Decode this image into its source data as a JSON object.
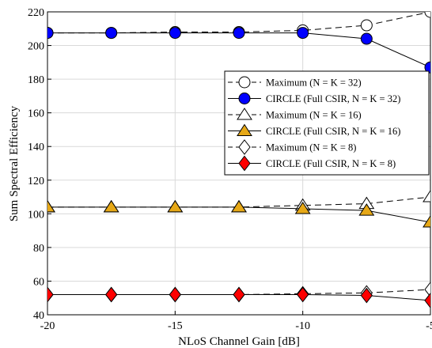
{
  "chart_data": {
    "type": "line",
    "xlabel": "NLoS Channel Gain [dB]",
    "ylabel": "Sum Spectral Efficiency",
    "xlim": [
      -20,
      -5
    ],
    "ylim": [
      40,
      220
    ],
    "x_ticks": [
      -20,
      -15,
      -10,
      -5
    ],
    "x_tick_labels": [
      "-20",
      "-15",
      "-10",
      "-5"
    ],
    "y_ticks": [
      40,
      60,
      80,
      100,
      120,
      140,
      160,
      180,
      200,
      220
    ],
    "y_tick_labels": [
      "40",
      "60",
      "80",
      "100",
      "120",
      "140",
      "160",
      "180",
      "200",
      "220"
    ],
    "grid": true,
    "legend_position": "right",
    "x": [
      -20,
      -17.5,
      -15,
      -12.5,
      -10,
      -7.5,
      -5
    ],
    "series": [
      {
        "name": "Maximum (N = K = 32)",
        "marker": "circle",
        "fill": "#ffffff",
        "dashed": true,
        "values": [
          207.5,
          207.5,
          208,
          208,
          209,
          212,
          220
        ]
      },
      {
        "name": "CIRCLE (Full CSIR, N = K = 32)",
        "marker": "circle",
        "fill": "#0000ff",
        "dashed": false,
        "values": [
          207.5,
          207.5,
          207.5,
          207.5,
          207.5,
          204,
          187
        ]
      },
      {
        "name": "Maximum (N = K = 16)",
        "marker": "triangle",
        "fill": "#ffffff",
        "dashed": true,
        "values": [
          104,
          104,
          104,
          104,
          105,
          106,
          110
        ]
      },
      {
        "name": "CIRCLE (Full CSIR, N = K = 16)",
        "marker": "triangle",
        "fill": "#e6a817",
        "dashed": false,
        "values": [
          104,
          104,
          104,
          104,
          103,
          102,
          95
        ]
      },
      {
        "name": "Maximum (N = K = 8)",
        "marker": "diamond",
        "fill": "#ffffff",
        "dashed": true,
        "values": [
          52,
          52,
          52,
          52,
          52.5,
          53,
          55
        ]
      },
      {
        "name": "CIRCLE (Full CSIR, N = K = 8)",
        "marker": "diamond",
        "fill": "#ff0000",
        "dashed": false,
        "values": [
          52,
          52,
          52,
          52,
          52,
          51.5,
          48.5
        ]
      }
    ]
  }
}
